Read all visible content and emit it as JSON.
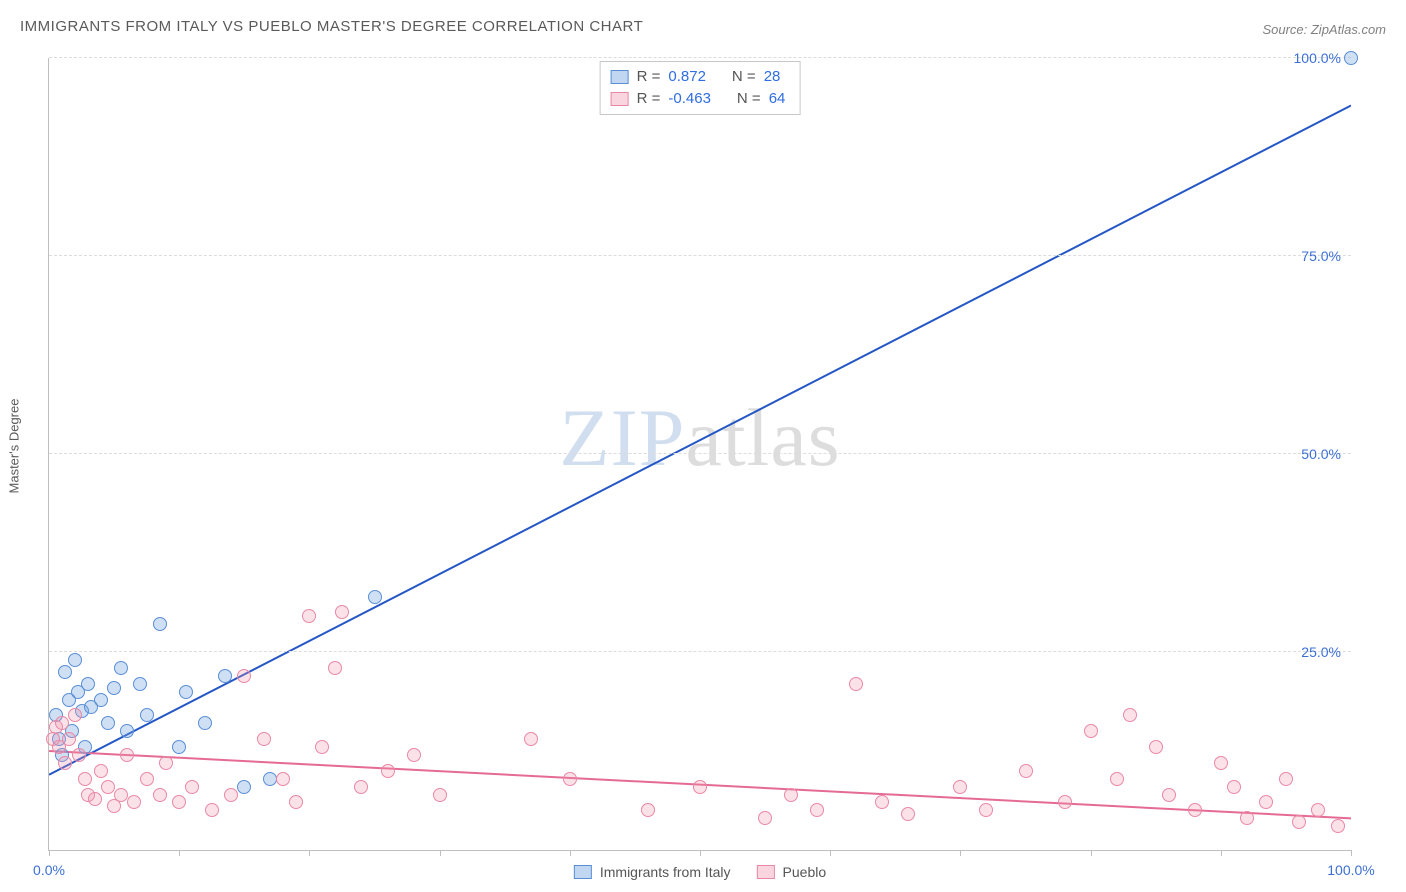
{
  "title": "IMMIGRANTS FROM ITALY VS PUEBLO MASTER'S DEGREE CORRELATION CHART",
  "source": "Source: ZipAtlas.com",
  "ylabel": "Master's Degree",
  "watermark_a": "ZIP",
  "watermark_b": "atlas",
  "chart": {
    "type": "scatter",
    "xlim": [
      0,
      100
    ],
    "ylim": [
      0,
      100
    ],
    "yticks": [
      25,
      50,
      75,
      100
    ],
    "ytick_labels": [
      "25.0%",
      "50.0%",
      "75.0%",
      "100.0%"
    ],
    "xticks": [
      0,
      10,
      20,
      30,
      40,
      50,
      60,
      70,
      80,
      90,
      100
    ],
    "xtick_labels_shown": {
      "0": "0.0%",
      "100": "100.0%"
    },
    "background_color": "#ffffff",
    "grid_color": "#dcdcdc",
    "axis_color": "#bfbfbf",
    "tick_label_color": "#3b6fd6",
    "axis_label_color": "#5a5a5a",
    "marker_radius": 7,
    "series": [
      {
        "name": "Immigrants from Italy",
        "color_fill": "rgba(117,163,224,0.35)",
        "color_stroke": "#5a8fd6",
        "reg_color": "#2457c5",
        "reg_width": 2,
        "R": 0.872,
        "N": 28,
        "regression": {
          "x1": 0,
          "y1": 9.5,
          "x2": 100,
          "y2": 94
        },
        "points": [
          {
            "x": 0.5,
            "y": 17
          },
          {
            "x": 0.8,
            "y": 14
          },
          {
            "x": 1.0,
            "y": 12
          },
          {
            "x": 1.2,
            "y": 22.5
          },
          {
            "x": 1.5,
            "y": 19
          },
          {
            "x": 1.8,
            "y": 15
          },
          {
            "x": 2.0,
            "y": 24
          },
          {
            "x": 2.2,
            "y": 20
          },
          {
            "x": 2.5,
            "y": 17.5
          },
          {
            "x": 2.8,
            "y": 13
          },
          {
            "x": 3.0,
            "y": 21
          },
          {
            "x": 3.2,
            "y": 18
          },
          {
            "x": 4.0,
            "y": 19
          },
          {
            "x": 4.5,
            "y": 16
          },
          {
            "x": 5.0,
            "y": 20.5
          },
          {
            "x": 5.5,
            "y": 23
          },
          {
            "x": 6.0,
            "y": 15
          },
          {
            "x": 7.0,
            "y": 21
          },
          {
            "x": 7.5,
            "y": 17
          },
          {
            "x": 8.5,
            "y": 28.5
          },
          {
            "x": 10.0,
            "y": 13
          },
          {
            "x": 10.5,
            "y": 20
          },
          {
            "x": 12.0,
            "y": 16
          },
          {
            "x": 13.5,
            "y": 22
          },
          {
            "x": 15.0,
            "y": 8
          },
          {
            "x": 17.0,
            "y": 9
          },
          {
            "x": 25.0,
            "y": 32
          },
          {
            "x": 100.0,
            "y": 100
          }
        ]
      },
      {
        "name": "Pueblo",
        "color_fill": "rgba(240,150,175,0.28)",
        "color_stroke": "#e888a5",
        "reg_color": "#e56a94",
        "reg_width": 2,
        "R": -0.463,
        "N": 64,
        "regression": {
          "x1": 0,
          "y1": 12.5,
          "x2": 100,
          "y2": 4.0
        },
        "points": [
          {
            "x": 0.3,
            "y": 14
          },
          {
            "x": 0.5,
            "y": 15.5
          },
          {
            "x": 0.8,
            "y": 13
          },
          {
            "x": 1.0,
            "y": 16
          },
          {
            "x": 1.2,
            "y": 11
          },
          {
            "x": 1.5,
            "y": 14
          },
          {
            "x": 2.0,
            "y": 17
          },
          {
            "x": 2.3,
            "y": 12
          },
          {
            "x": 2.8,
            "y": 9
          },
          {
            "x": 3.0,
            "y": 7
          },
          {
            "x": 3.5,
            "y": 6.5
          },
          {
            "x": 4.0,
            "y": 10
          },
          {
            "x": 4.5,
            "y": 8
          },
          {
            "x": 5.0,
            "y": 5.5
          },
          {
            "x": 5.5,
            "y": 7
          },
          {
            "x": 6.0,
            "y": 12
          },
          {
            "x": 6.5,
            "y": 6
          },
          {
            "x": 7.5,
            "y": 9
          },
          {
            "x": 8.5,
            "y": 7
          },
          {
            "x": 9.0,
            "y": 11
          },
          {
            "x": 10.0,
            "y": 6
          },
          {
            "x": 11.0,
            "y": 8
          },
          {
            "x": 12.5,
            "y": 5
          },
          {
            "x": 14.0,
            "y": 7
          },
          {
            "x": 15.0,
            "y": 22
          },
          {
            "x": 16.5,
            "y": 14
          },
          {
            "x": 18.0,
            "y": 9
          },
          {
            "x": 19.0,
            "y": 6
          },
          {
            "x": 20.0,
            "y": 29.5
          },
          {
            "x": 21.0,
            "y": 13
          },
          {
            "x": 22.0,
            "y": 23
          },
          {
            "x": 22.5,
            "y": 30
          },
          {
            "x": 24.0,
            "y": 8
          },
          {
            "x": 26.0,
            "y": 10
          },
          {
            "x": 28.0,
            "y": 12
          },
          {
            "x": 30.0,
            "y": 7
          },
          {
            "x": 37.0,
            "y": 14
          },
          {
            "x": 40.0,
            "y": 9
          },
          {
            "x": 46.0,
            "y": 5
          },
          {
            "x": 50.0,
            "y": 8
          },
          {
            "x": 55.0,
            "y": 4
          },
          {
            "x": 57.0,
            "y": 7
          },
          {
            "x": 59.0,
            "y": 5
          },
          {
            "x": 62.0,
            "y": 21
          },
          {
            "x": 64.0,
            "y": 6
          },
          {
            "x": 66.0,
            "y": 4.5
          },
          {
            "x": 70.0,
            "y": 8
          },
          {
            "x": 72.0,
            "y": 5
          },
          {
            "x": 75.0,
            "y": 10
          },
          {
            "x": 78.0,
            "y": 6
          },
          {
            "x": 80.0,
            "y": 15
          },
          {
            "x": 82.0,
            "y": 9
          },
          {
            "x": 83.0,
            "y": 17
          },
          {
            "x": 85.0,
            "y": 13
          },
          {
            "x": 86.0,
            "y": 7
          },
          {
            "x": 88.0,
            "y": 5
          },
          {
            "x": 90.0,
            "y": 11
          },
          {
            "x": 91.0,
            "y": 8
          },
          {
            "x": 92.0,
            "y": 4
          },
          {
            "x": 93.5,
            "y": 6
          },
          {
            "x": 95.0,
            "y": 9
          },
          {
            "x": 96.0,
            "y": 3.5
          },
          {
            "x": 97.5,
            "y": 5
          },
          {
            "x": 99.0,
            "y": 3
          }
        ]
      }
    ]
  },
  "legend_top": {
    "rows": [
      {
        "swatch": "blue",
        "r_label": "R =",
        "r_val": "0.872",
        "n_label": "N =",
        "n_val": "28"
      },
      {
        "swatch": "pink",
        "r_label": "R =",
        "r_val": "-0.463",
        "n_label": "N =",
        "n_val": "64"
      }
    ]
  },
  "legend_bottom": {
    "items": [
      {
        "swatch": "blue",
        "label": "Immigrants from Italy"
      },
      {
        "swatch": "pink",
        "label": "Pueblo"
      }
    ]
  }
}
